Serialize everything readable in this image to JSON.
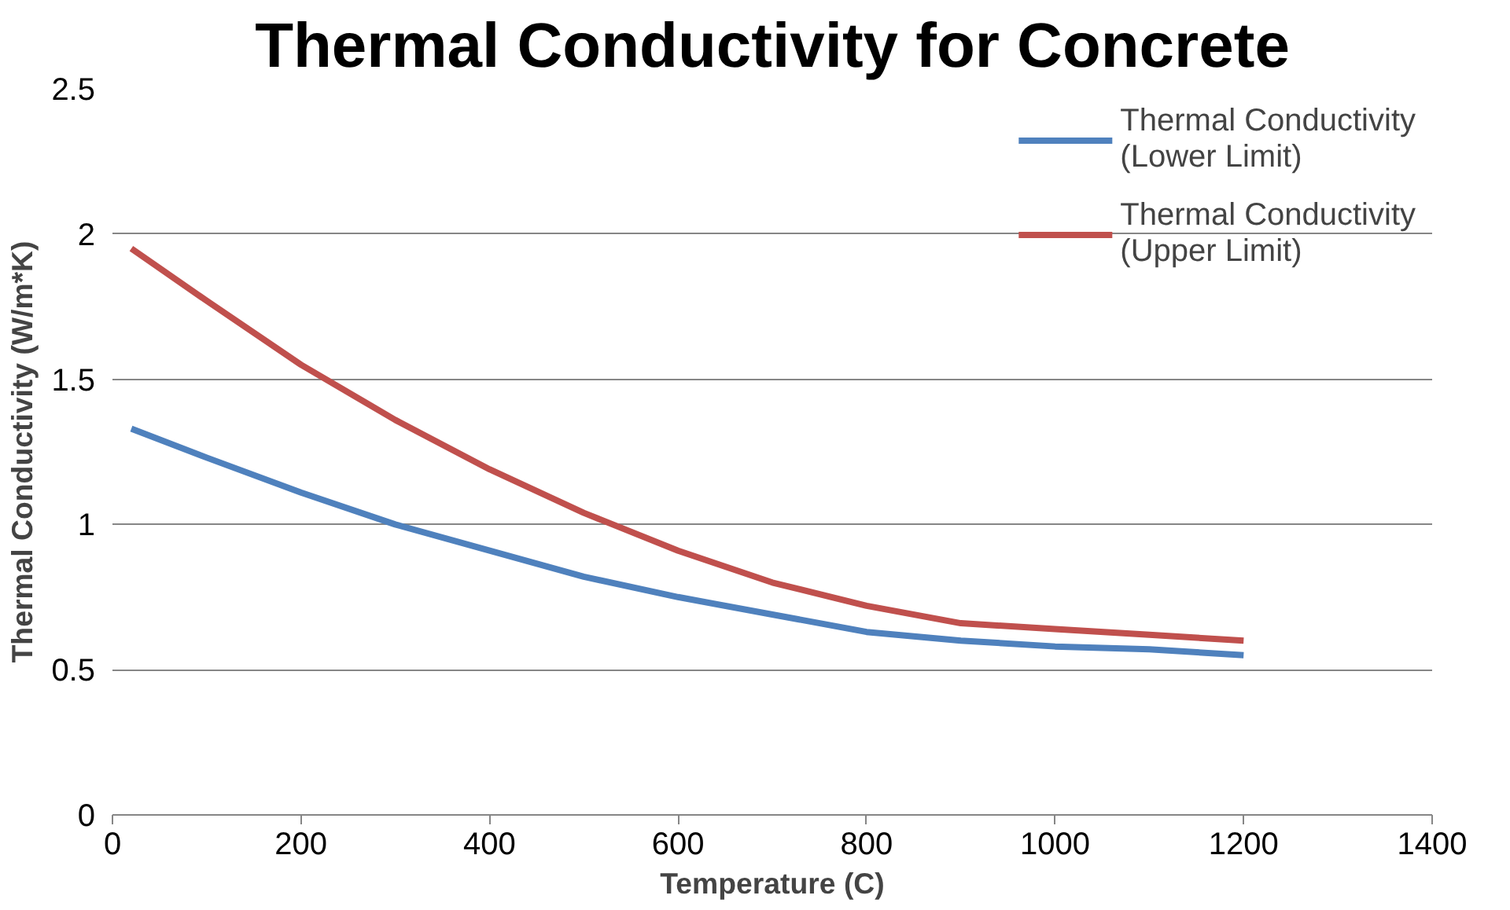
{
  "chart_data": {
    "type": "line",
    "title": "Thermal Conductivity for Concrete",
    "xlabel": "Temperature (C)",
    "ylabel": "Thermal Conductivity (W/m*K)",
    "x": [
      20,
      100,
      200,
      300,
      400,
      500,
      600,
      700,
      800,
      900,
      1000,
      1100,
      1200
    ],
    "series": [
      {
        "name": "Thermal Conductivity\n(Lower Limit)",
        "color": "#4f81bd",
        "values": [
          1.33,
          1.23,
          1.11,
          1.0,
          0.91,
          0.82,
          0.75,
          0.69,
          0.63,
          0.6,
          0.58,
          0.57,
          0.55
        ]
      },
      {
        "name": "Thermal Conductivity\n(Upper Limit)",
        "color": "#c0504d",
        "values": [
          1.95,
          1.77,
          1.55,
          1.36,
          1.19,
          1.04,
          0.91,
          0.8,
          0.72,
          0.66,
          0.64,
          0.62,
          0.6
        ]
      }
    ],
    "xlim": [
      0,
      1400
    ],
    "xticks": [
      0,
      200,
      400,
      600,
      800,
      1000,
      1200,
      1400
    ],
    "ylim": [
      0,
      2.5
    ],
    "yticks": [
      0,
      0.5,
      1,
      1.5,
      2,
      2.5
    ],
    "grid": "y",
    "legend": "top right",
    "marker": "none",
    "line_style": "solid"
  }
}
